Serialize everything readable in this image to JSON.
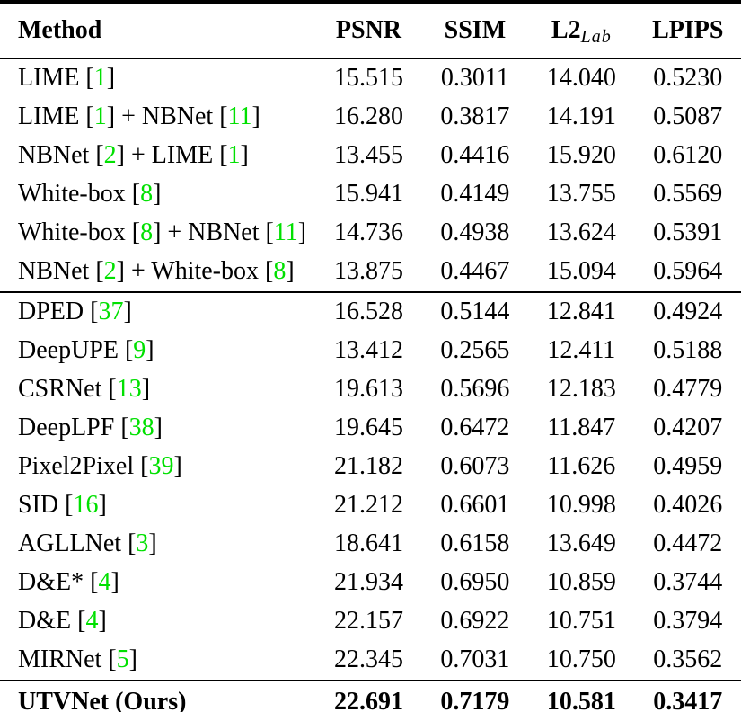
{
  "table": {
    "colors": {
      "text": "#000000",
      "background": "#ffffff",
      "citation_green": "#00E000",
      "rule": "#000000"
    },
    "columns": [
      {
        "key": "method",
        "label": "Method"
      },
      {
        "key": "psnr",
        "label": "PSNR"
      },
      {
        "key": "ssim",
        "label": "SSIM"
      },
      {
        "key": "l2",
        "label_main": "L2",
        "label_sub": "Lab"
      },
      {
        "key": "lpips",
        "label": "LPIPS"
      }
    ],
    "rows": [
      {
        "method": "LIME [1]",
        "psnr": "15.515",
        "ssim": "0.3011",
        "l2": "14.040",
        "lpips": "0.5230"
      },
      {
        "method": "LIME [1] + NBNet [11]",
        "psnr": "16.280",
        "ssim": "0.3817",
        "l2": "14.191",
        "lpips": "0.5087"
      },
      {
        "method": "NBNet [2] + LIME [1]",
        "psnr": "13.455",
        "ssim": "0.4416",
        "l2": "15.920",
        "lpips": "0.6120"
      },
      {
        "method": "White-box [8]",
        "psnr": "15.941",
        "ssim": "0.4149",
        "l2": "13.755",
        "lpips": "0.5569"
      },
      {
        "method": "White-box [8] + NBNet [11]",
        "psnr": "14.736",
        "ssim": "0.4938",
        "l2": "13.624",
        "lpips": "0.5391"
      },
      {
        "method": "NBNet [2] + White-box [8]",
        "psnr": "13.875",
        "ssim": "0.4467",
        "l2": "15.094",
        "lpips": "0.5964"
      },
      {
        "method": "DPED [37]",
        "psnr": "16.528",
        "ssim": "0.5144",
        "l2": "12.841",
        "lpips": "0.4924",
        "divider_above": true
      },
      {
        "method": "DeepUPE [9]",
        "psnr": "13.412",
        "ssim": "0.2565",
        "l2": "12.411",
        "lpips": "0.5188"
      },
      {
        "method": "CSRNet [13]",
        "psnr": "19.613",
        "ssim": "0.5696",
        "l2": "12.183",
        "lpips": "0.4779"
      },
      {
        "method": "DeepLPF [38]",
        "psnr": "19.645",
        "ssim": "0.6472",
        "l2": "11.847",
        "lpips": "0.4207"
      },
      {
        "method": "Pixel2Pixel [39]",
        "psnr": "21.182",
        "ssim": "0.6073",
        "l2": "11.626",
        "lpips": "0.4959"
      },
      {
        "method": "SID [16]",
        "psnr": "21.212",
        "ssim": "0.6601",
        "l2": "10.998",
        "lpips": "0.4026"
      },
      {
        "method": "AGLLNet [3]",
        "psnr": "18.641",
        "ssim": "0.6158",
        "l2": "13.649",
        "lpips": "0.4472"
      },
      {
        "method": "D&E* [4]",
        "psnr": "21.934",
        "ssim": "0.6950",
        "l2": "10.859",
        "lpips": "0.3744"
      },
      {
        "method": "D&E [4]",
        "psnr": "22.157",
        "ssim": "0.6922",
        "l2": "10.751",
        "lpips": "0.3794"
      },
      {
        "method": "MIRNet [5]",
        "psnr": "22.345",
        "ssim": "0.7031",
        "l2": "10.750",
        "lpips": "0.3562"
      },
      {
        "method": "UTVNet (Ours)",
        "psnr": "22.691",
        "ssim": "0.7179",
        "l2": "10.581",
        "lpips": "0.3417",
        "divider_above": true,
        "bold": true
      }
    ]
  }
}
